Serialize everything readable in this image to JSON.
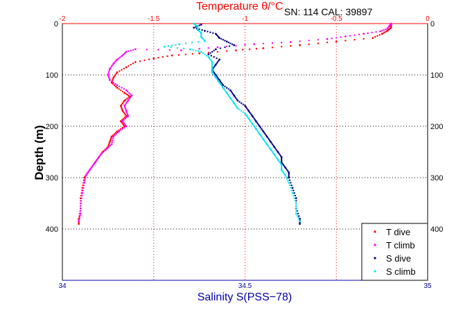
{
  "header": {
    "serial": "SN: 114  CAL: 39897"
  },
  "chart_data": {
    "type": "scatter",
    "y_axis": {
      "label": "Depth (m)",
      "ticks": [
        0,
        100,
        200,
        300,
        400
      ],
      "ylim": [
        0,
        500
      ],
      "reversed": true
    },
    "x_top": {
      "label": "Temperature θ/°C",
      "ticks": [
        -2,
        -1.5,
        -1,
        -0.5,
        0
      ],
      "xlim": [
        -2,
        0
      ],
      "color": "#ff0000"
    },
    "x_bottom": {
      "label": "Salinity S(PSS−78)",
      "ticks": [
        34,
        34.5,
        35
      ],
      "xlim": [
        34,
        35
      ],
      "color": "#0000aa"
    },
    "grid": true,
    "legend_position": "bottom-right",
    "series": [
      {
        "name": "T dive",
        "axis": "temperature",
        "color": "#ff0000",
        "points": [
          [
            -0.2,
            2
          ],
          [
            -0.2,
            8
          ],
          [
            -0.22,
            14
          ],
          [
            -0.25,
            20
          ],
          [
            -0.3,
            28
          ],
          [
            -0.5,
            35
          ],
          [
            -0.7,
            42
          ],
          [
            -0.9,
            48
          ],
          [
            -1.05,
            52
          ],
          [
            -1.25,
            58
          ],
          [
            -1.4,
            62
          ],
          [
            -1.5,
            68
          ],
          [
            -1.6,
            75
          ],
          [
            -1.65,
            85
          ],
          [
            -1.7,
            95
          ],
          [
            -1.72,
            105
          ],
          [
            -1.73,
            115
          ],
          [
            -1.7,
            125
          ],
          [
            -1.66,
            135
          ],
          [
            -1.63,
            142
          ],
          [
            -1.66,
            150
          ],
          [
            -1.68,
            160
          ],
          [
            -1.67,
            170
          ],
          [
            -1.65,
            180
          ],
          [
            -1.68,
            190
          ],
          [
            -1.66,
            200
          ],
          [
            -1.7,
            210
          ],
          [
            -1.73,
            220
          ],
          [
            -1.74,
            230
          ],
          [
            -1.75,
            240
          ],
          [
            -1.78,
            250
          ],
          [
            -1.8,
            260
          ],
          [
            -1.82,
            270
          ],
          [
            -1.84,
            280
          ],
          [
            -1.86,
            290
          ],
          [
            -1.88,
            300
          ],
          [
            -1.89,
            320
          ],
          [
            -1.9,
            340
          ],
          [
            -1.9,
            360
          ],
          [
            -1.91,
            380
          ],
          [
            -1.91,
            390
          ]
        ]
      },
      {
        "name": "T climb",
        "axis": "temperature",
        "color": "#ff00ff",
        "points": [
          [
            -0.2,
            0
          ],
          [
            -0.21,
            5
          ],
          [
            -0.22,
            10
          ],
          [
            -0.26,
            15
          ],
          [
            -0.35,
            20
          ],
          [
            -0.45,
            25
          ],
          [
            -0.55,
            30
          ],
          [
            -0.75,
            36
          ],
          [
            -0.95,
            40
          ],
          [
            -1.15,
            46
          ],
          [
            -1.35,
            52
          ],
          [
            -1.6,
            50
          ],
          [
            -1.65,
            55
          ],
          [
            -1.67,
            62
          ],
          [
            -1.7,
            70
          ],
          [
            -1.72,
            78
          ],
          [
            -1.74,
            88
          ],
          [
            -1.75,
            100
          ],
          [
            -1.74,
            110
          ],
          [
            -1.7,
            120
          ],
          [
            -1.65,
            130
          ],
          [
            -1.62,
            140
          ],
          [
            -1.64,
            150
          ],
          [
            -1.66,
            160
          ],
          [
            -1.65,
            170
          ],
          [
            -1.64,
            180
          ],
          [
            -1.67,
            190
          ],
          [
            -1.65,
            200
          ],
          [
            -1.69,
            210
          ],
          [
            -1.72,
            220
          ],
          [
            -1.73,
            235
          ],
          [
            -1.76,
            245
          ],
          [
            -1.79,
            255
          ],
          [
            -1.81,
            265
          ],
          [
            -1.83,
            275
          ],
          [
            -1.85,
            285
          ],
          [
            -1.87,
            295
          ],
          [
            -1.88,
            310
          ],
          [
            -1.89,
            330
          ],
          [
            -1.9,
            350
          ],
          [
            -1.9,
            370
          ],
          [
            -1.91,
            385
          ]
        ]
      },
      {
        "name": "S dive",
        "axis": "salinity",
        "color": "#000080",
        "points": [
          [
            34.38,
            2
          ],
          [
            34.36,
            8
          ],
          [
            34.39,
            14
          ],
          [
            34.42,
            20
          ],
          [
            34.43,
            28
          ],
          [
            34.45,
            35
          ],
          [
            34.47,
            42
          ],
          [
            34.42,
            50
          ],
          [
            34.4,
            60
          ],
          [
            34.43,
            70
          ],
          [
            34.42,
            80
          ],
          [
            34.41,
            90
          ],
          [
            34.42,
            100
          ],
          [
            34.43,
            110
          ],
          [
            34.44,
            120
          ],
          [
            34.46,
            130
          ],
          [
            34.47,
            140
          ],
          [
            34.48,
            150
          ],
          [
            34.5,
            160
          ],
          [
            34.51,
            170
          ],
          [
            34.52,
            180
          ],
          [
            34.53,
            190
          ],
          [
            34.54,
            200
          ],
          [
            34.55,
            210
          ],
          [
            34.56,
            220
          ],
          [
            34.57,
            230
          ],
          [
            34.58,
            240
          ],
          [
            34.59,
            250
          ],
          [
            34.6,
            260
          ],
          [
            34.6,
            270
          ],
          [
            34.61,
            280
          ],
          [
            34.62,
            290
          ],
          [
            34.62,
            300
          ],
          [
            34.63,
            320
          ],
          [
            34.64,
            340
          ],
          [
            34.64,
            360
          ],
          [
            34.65,
            380
          ],
          [
            34.65,
            390
          ]
        ]
      },
      {
        "name": "S climb",
        "axis": "salinity",
        "color": "#00e5ee",
        "points": [
          [
            34.36,
            0
          ],
          [
            34.37,
            6
          ],
          [
            34.37,
            12
          ],
          [
            34.38,
            18
          ],
          [
            34.38,
            26
          ],
          [
            34.39,
            34
          ],
          [
            34.32,
            40
          ],
          [
            34.28,
            45
          ],
          [
            34.35,
            50
          ],
          [
            34.38,
            55
          ],
          [
            34.4,
            65
          ],
          [
            34.41,
            75
          ],
          [
            34.41,
            85
          ],
          [
            34.41,
            95
          ],
          [
            34.42,
            105
          ],
          [
            34.43,
            115
          ],
          [
            34.44,
            125
          ],
          [
            34.45,
            135
          ],
          [
            34.46,
            145
          ],
          [
            34.47,
            155
          ],
          [
            34.48,
            165
          ],
          [
            34.5,
            175
          ],
          [
            34.51,
            185
          ],
          [
            34.52,
            195
          ],
          [
            34.53,
            205
          ],
          [
            34.54,
            215
          ],
          [
            34.55,
            225
          ],
          [
            34.56,
            235
          ],
          [
            34.57,
            245
          ],
          [
            34.58,
            255
          ],
          [
            34.59,
            265
          ],
          [
            34.6,
            275
          ],
          [
            34.6,
            285
          ],
          [
            34.61,
            295
          ],
          [
            34.62,
            310
          ],
          [
            34.63,
            330
          ],
          [
            34.64,
            350
          ],
          [
            34.64,
            370
          ],
          [
            34.65,
            385
          ]
        ]
      }
    ]
  }
}
